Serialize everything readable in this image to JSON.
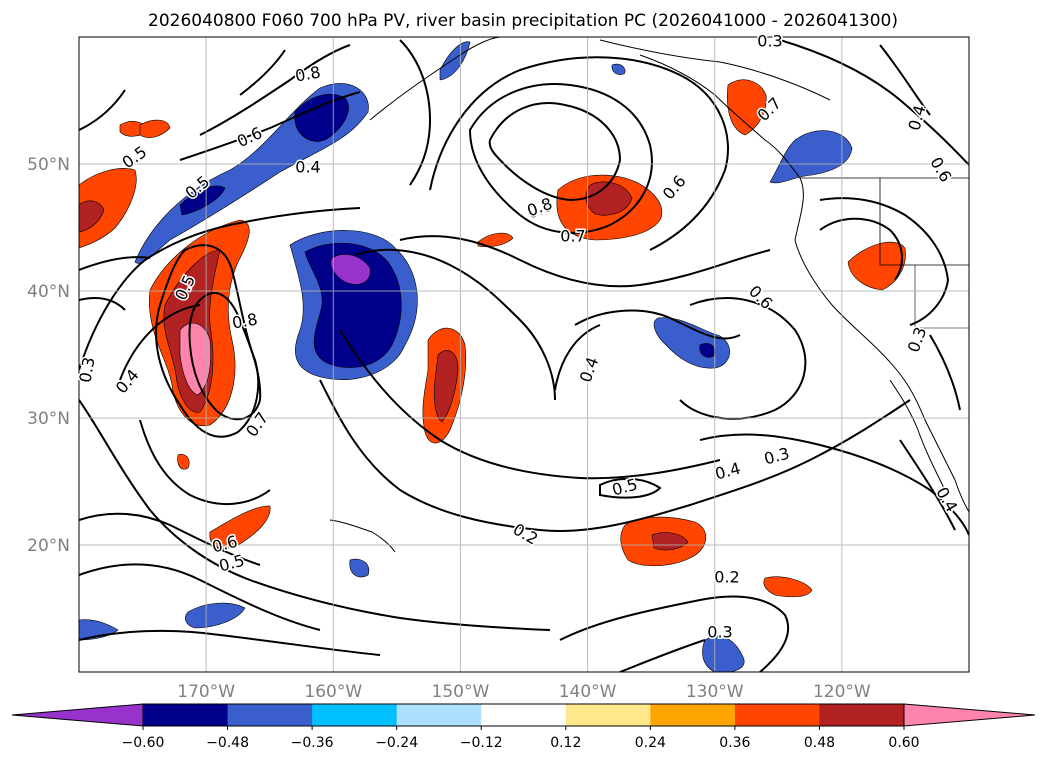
{
  "title": "2026040800 F060 700 hPa PV, river basin precipitation PC (2026041000 - 2026041300)",
  "map": {
    "lat_labels": [
      "50°N",
      "40°N",
      "30°N",
      "20°N"
    ],
    "lon_labels": [
      "170°W",
      "160°W",
      "150°W",
      "140°W",
      "130°W",
      "120°W"
    ],
    "lat_values": [
      50,
      40,
      30,
      20
    ],
    "lon_values": [
      -170,
      -160,
      -150,
      -140,
      -130,
      -120
    ],
    "extent": {
      "lon": [
        -180,
        -110
      ],
      "lat": [
        10,
        60
      ]
    },
    "gridlines": true
  },
  "colorbar": {
    "ticks": [
      "−0.60",
      "−0.48",
      "−0.36",
      "−0.24",
      "−0.12",
      "0.12",
      "0.24",
      "0.36",
      "0.48",
      "0.60"
    ],
    "tick_values": [
      -0.6,
      -0.48,
      -0.36,
      -0.24,
      -0.12,
      0.12,
      0.24,
      0.36,
      0.48,
      0.6
    ],
    "colors": [
      "#9932CC",
      "#00008B",
      "#3A5FCD",
      "#00BFFF",
      "#ADDFFF",
      "#FFFFFF",
      "#FFE98C",
      "#FFA500",
      "#FF4500",
      "#B22222",
      "#FF85AC"
    ],
    "extend": "both"
  },
  "contour_labels": [
    {
      "text": "0.3"
    },
    {
      "text": "0.8"
    },
    {
      "text": "0.6"
    },
    {
      "text": "0.4"
    },
    {
      "text": "0.5"
    },
    {
      "text": "0.5"
    },
    {
      "text": "0.5"
    },
    {
      "text": "0.8"
    },
    {
      "text": "0.7"
    },
    {
      "text": "0.6"
    },
    {
      "text": "0.3"
    },
    {
      "text": "0.4"
    },
    {
      "text": "0.7"
    },
    {
      "text": "0.8"
    },
    {
      "text": "0.7"
    },
    {
      "text": "0.6"
    },
    {
      "text": "0.6"
    },
    {
      "text": "0.4"
    },
    {
      "text": "0.6"
    },
    {
      "text": "0.4"
    },
    {
      "text": "0.5"
    },
    {
      "text": "0.4"
    },
    {
      "text": "0.3"
    },
    {
      "text": "0.2"
    },
    {
      "text": "0.2"
    },
    {
      "text": "0.3"
    },
    {
      "text": "0.6"
    },
    {
      "text": "0.5"
    },
    {
      "text": "0.3"
    },
    {
      "text": "0.4"
    }
  ]
}
